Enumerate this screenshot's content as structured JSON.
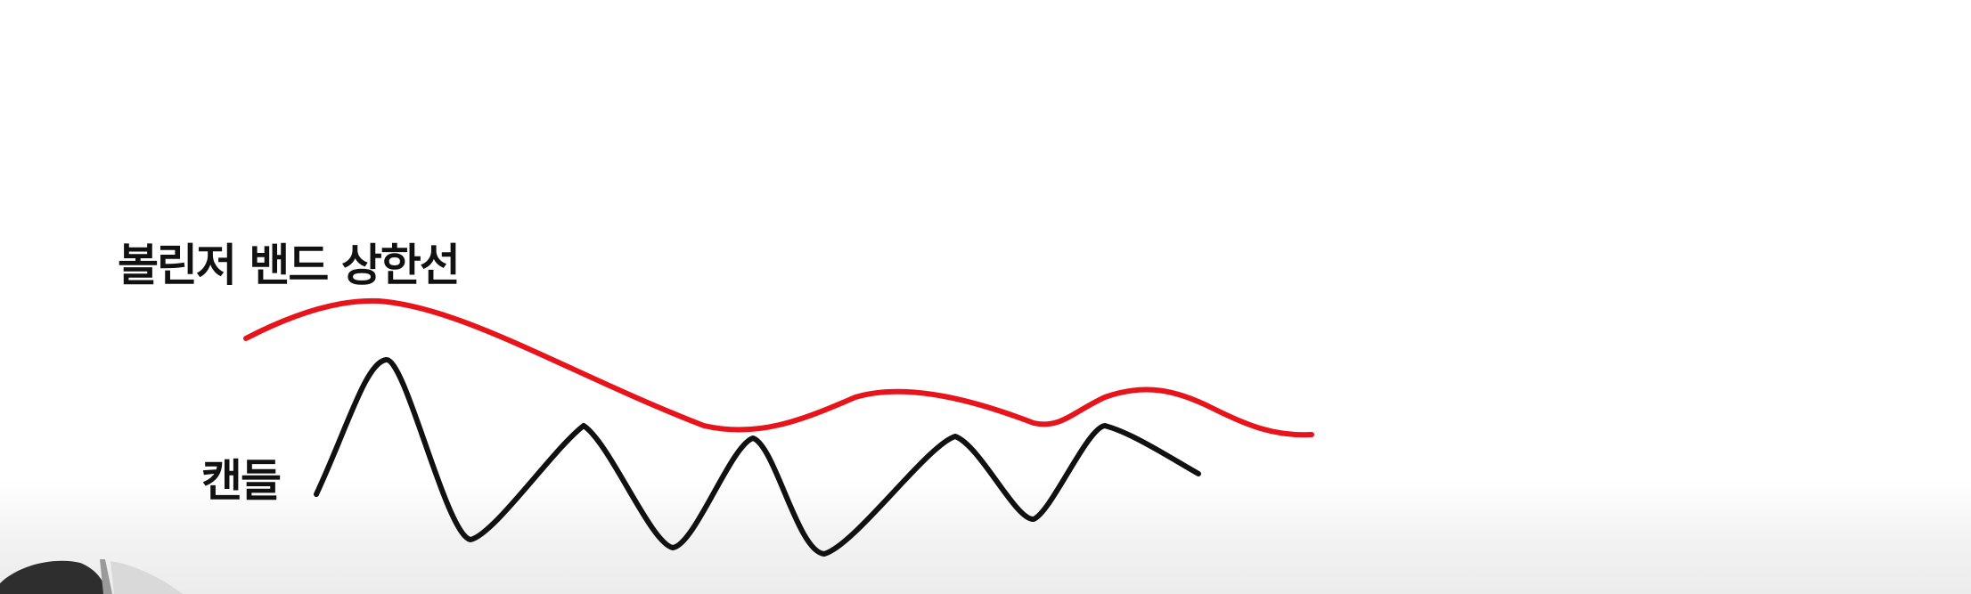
{
  "labels": {
    "upper_band": "볼린저 밴드 상한선",
    "candle": "캔들"
  },
  "colors": {
    "upper_band": "#e8141c",
    "candle": "#111111",
    "background": "#ffffff"
  }
}
